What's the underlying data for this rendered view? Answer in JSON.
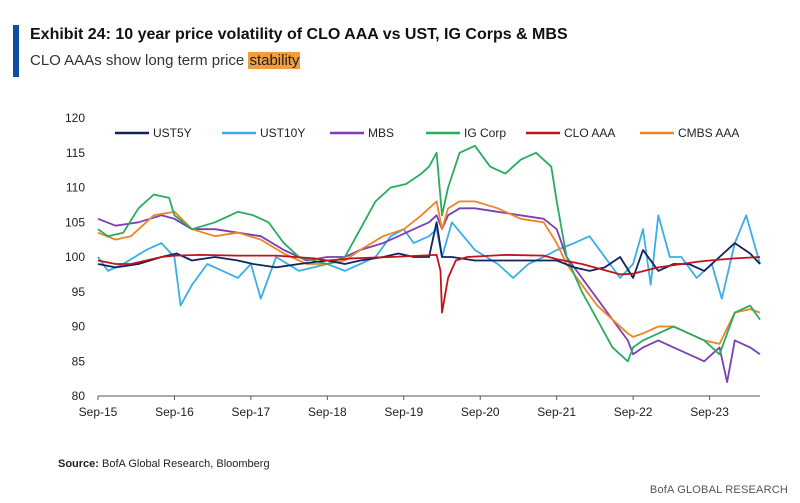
{
  "header": {
    "title": "Exhibit 24: 10 year price volatility of CLO AAA vs UST, IG Corps & MBS",
    "subtitle_main": "CLO AAAs show long term price ",
    "subtitle_highlight": "stability"
  },
  "footer": {
    "source_label": "Source:",
    "source_text": " BofA Global Research, Bloomberg",
    "brand": "BofA GLOBAL RESEARCH"
  },
  "chart_data": {
    "type": "line",
    "ylim": [
      80,
      120
    ],
    "yticks": [
      80,
      85,
      90,
      95,
      100,
      105,
      110,
      115,
      120
    ],
    "xlim": [
      2015.67,
      2024.33
    ],
    "xtick_labels": [
      "Sep-15",
      "Sep-16",
      "Sep-17",
      "Sep-18",
      "Sep-19",
      "Sep-20",
      "Sep-21",
      "Sep-22",
      "Sep-23"
    ],
    "xtick_values": [
      2015.67,
      2016.67,
      2017.67,
      2018.67,
      2019.67,
      2020.67,
      2021.67,
      2022.67,
      2023.67
    ],
    "grid": false,
    "legend": "top",
    "series": [
      {
        "name": "UST5Y",
        "color": "#12235f",
        "x": [
          2015.67,
          2015.9,
          2016.2,
          2016.5,
          2016.7,
          2016.9,
          2017.2,
          2017.5,
          2017.7,
          2018.0,
          2018.3,
          2018.67,
          2018.9,
          2019.1,
          2019.4,
          2019.6,
          2019.8,
          2020.0,
          2020.1,
          2020.17,
          2020.3,
          2020.6,
          2020.9,
          2021.2,
          2021.5,
          2021.67,
          2021.9,
          2022.1,
          2022.3,
          2022.5,
          2022.67,
          2022.8,
          2023.0,
          2023.2,
          2023.4,
          2023.6,
          2023.8,
          2024.0,
          2024.2,
          2024.33
        ],
        "y": [
          99,
          98.5,
          99,
          100,
          100.5,
          99.5,
          100,
          99.5,
          99,
          98.5,
          99,
          99.5,
          99,
          99.5,
          100,
          100.5,
          100,
          100,
          105,
          100,
          100,
          99.5,
          99.5,
          99.5,
          99.5,
          99.5,
          98.5,
          98,
          98.5,
          100,
          97,
          101,
          98,
          99,
          99,
          98,
          100,
          102,
          100.5,
          99
        ]
      },
      {
        "name": "UST10Y",
        "color": "#3aaee8",
        "x": [
          2015.67,
          2015.8,
          2016.0,
          2016.3,
          2016.5,
          2016.67,
          2016.75,
          2016.9,
          2017.1,
          2017.3,
          2017.5,
          2017.67,
          2017.8,
          2018.0,
          2018.3,
          2018.67,
          2018.9,
          2019.1,
          2019.3,
          2019.5,
          2019.67,
          2019.8,
          2020.0,
          2020.1,
          2020.17,
          2020.3,
          2020.6,
          2020.9,
          2021.1,
          2021.3,
          2021.5,
          2021.67,
          2021.9,
          2022.1,
          2022.3,
          2022.5,
          2022.67,
          2022.8,
          2022.9,
          2023.0,
          2023.15,
          2023.3,
          2023.5,
          2023.7,
          2023.83,
          2024.0,
          2024.15,
          2024.33
        ],
        "y": [
          100,
          98,
          99,
          101,
          102,
          100,
          93,
          96,
          99,
          98,
          97,
          99,
          94,
          100,
          98,
          99,
          98,
          99,
          100,
          103,
          104,
          102,
          103,
          104,
          100,
          105,
          101,
          99,
          97,
          99,
          100,
          101,
          102,
          103,
          100,
          97,
          99,
          104,
          96,
          106,
          100,
          100,
          97,
          99,
          94,
          102,
          106,
          99
        ]
      },
      {
        "name": "MBS",
        "color": "#7a3fb5",
        "x": [
          2015.67,
          2015.9,
          2016.2,
          2016.5,
          2016.67,
          2016.9,
          2017.2,
          2017.5,
          2017.8,
          2018.1,
          2018.4,
          2018.67,
          2018.9,
          2019.1,
          2019.4,
          2019.6,
          2019.8,
          2020.0,
          2020.1,
          2020.17,
          2020.25,
          2020.4,
          2020.6,
          2020.9,
          2021.2,
          2021.5,
          2021.67,
          2021.8,
          2022.0,
          2022.2,
          2022.4,
          2022.6,
          2022.67,
          2022.8,
          2023.0,
          2023.2,
          2023.4,
          2023.6,
          2023.8,
          2023.9,
          2024.0,
          2024.2,
          2024.33
        ],
        "y": [
          105.5,
          104.5,
          105,
          106,
          105.5,
          104,
          104,
          103.5,
          103,
          101,
          99.5,
          100,
          100,
          101,
          102,
          103,
          104,
          105,
          106,
          104,
          106,
          107,
          107,
          106.5,
          106,
          105.5,
          104,
          100,
          97,
          94,
          91,
          88,
          86,
          87,
          88,
          87,
          86,
          85,
          87,
          82,
          88,
          87,
          86
        ]
      },
      {
        "name": "IG Corp",
        "color": "#27ad5d",
        "x": [
          2015.67,
          2015.8,
          2016.0,
          2016.2,
          2016.4,
          2016.6,
          2016.67,
          2016.9,
          2017.2,
          2017.5,
          2017.7,
          2017.9,
          2018.1,
          2018.3,
          2018.67,
          2018.9,
          2019.1,
          2019.3,
          2019.5,
          2019.7,
          2019.9,
          2020.0,
          2020.1,
          2020.17,
          2020.25,
          2020.4,
          2020.6,
          2020.8,
          2021.0,
          2021.2,
          2021.4,
          2021.6,
          2021.67,
          2021.8,
          2022.0,
          2022.2,
          2022.4,
          2022.6,
          2022.67,
          2022.8,
          2023.0,
          2023.2,
          2023.4,
          2023.6,
          2023.8,
          2024.0,
          2024.2,
          2024.33
        ],
        "y": [
          104,
          103,
          103.5,
          107,
          109,
          108.5,
          106,
          104,
          105,
          106.5,
          106,
          105,
          102,
          100,
          99,
          100,
          104,
          108,
          110,
          110.5,
          112,
          113,
          115,
          106,
          110,
          115,
          116,
          113,
          112,
          114,
          115,
          113,
          108,
          100,
          95,
          91,
          87,
          85,
          87,
          88,
          89,
          90,
          89,
          88,
          86,
          92,
          93,
          91
        ]
      },
      {
        "name": "CLO AAA",
        "color": "#c21318",
        "x": [
          2015.67,
          2015.9,
          2016.1,
          2016.3,
          2016.5,
          2016.67,
          2017.0,
          2017.5,
          2018.0,
          2018.5,
          2018.67,
          2019.0,
          2019.5,
          2019.9,
          2020.1,
          2020.15,
          2020.17,
          2020.25,
          2020.35,
          2020.5,
          2021.0,
          2021.5,
          2021.67,
          2022.0,
          2022.5,
          2022.67,
          2023.0,
          2023.5,
          2023.67,
          2024.0,
          2024.33
        ],
        "y": [
          99.5,
          99,
          99,
          99.5,
          100,
          100.2,
          100.3,
          100.2,
          100.2,
          99.8,
          99.5,
          99.8,
          100,
          100.2,
          100.3,
          98,
          92,
          97,
          99.5,
          100,
          100.3,
          100.2,
          99.7,
          99,
          97.5,
          97.6,
          98.5,
          99.3,
          99.5,
          99.8,
          100
        ]
      },
      {
        "name": "CMBS AAA",
        "color": "#f08424",
        "x": [
          2015.67,
          2015.9,
          2016.1,
          2016.4,
          2016.67,
          2016.9,
          2017.2,
          2017.5,
          2017.8,
          2018.1,
          2018.4,
          2018.67,
          2018.9,
          2019.1,
          2019.4,
          2019.67,
          2019.9,
          2020.1,
          2020.17,
          2020.25,
          2020.4,
          2020.6,
          2020.9,
          2021.2,
          2021.5,
          2021.67,
          2021.8,
          2022.0,
          2022.2,
          2022.4,
          2022.6,
          2022.67,
          2022.8,
          2023.0,
          2023.2,
          2023.4,
          2023.6,
          2023.8,
          2024.0,
          2024.2,
          2024.33
        ],
        "y": [
          103.5,
          102.5,
          103,
          106,
          106.5,
          104,
          103,
          103.5,
          102.5,
          100.5,
          99,
          99,
          99.5,
          101,
          103,
          104,
          106,
          108,
          104,
          107,
          108,
          108,
          107,
          105.5,
          105,
          102,
          99,
          96,
          93,
          91,
          89,
          88.5,
          89,
          90,
          90,
          89,
          88,
          87.5,
          92,
          92.5,
          92
        ]
      }
    ]
  }
}
